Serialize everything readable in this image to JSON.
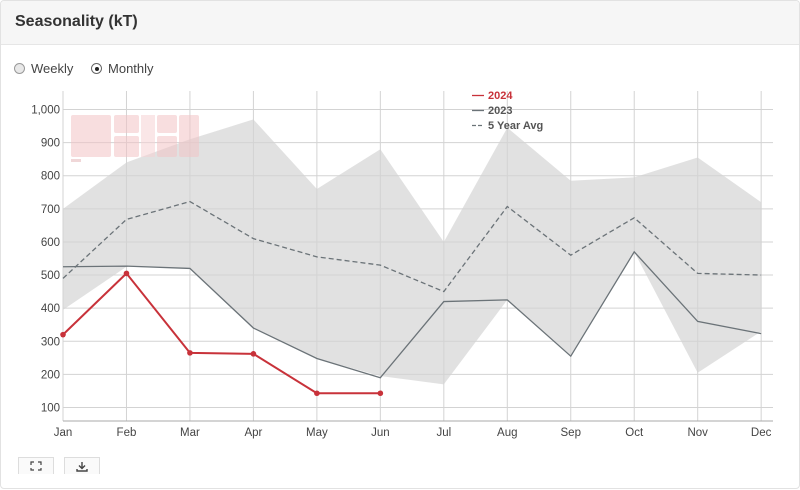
{
  "panel": {
    "title": "Seasonality (kT)"
  },
  "controls": {
    "options": [
      {
        "label": "Weekly",
        "checked": false
      },
      {
        "label": "Monthly",
        "checked": true
      }
    ]
  },
  "icons": {
    "fullscreen": "expand-icon",
    "download": "download-icon"
  },
  "chart_data": {
    "type": "line",
    "title": "",
    "xlabel": "",
    "ylabel": "",
    "categories": [
      "Jan",
      "Feb",
      "Mar",
      "Apr",
      "May",
      "Jun",
      "Jul",
      "Aug",
      "Sep",
      "Oct",
      "Nov",
      "Dec"
    ],
    "ylim": [
      50,
      1050
    ],
    "yticks": [
      100,
      200,
      300,
      400,
      500,
      600,
      700,
      800,
      900,
      1000
    ],
    "ytick_labels": [
      "100",
      "200",
      "300",
      "400",
      "500",
      "600",
      "700",
      "800",
      "900",
      "1,000"
    ],
    "grid": true,
    "legend_position": "top-center",
    "series": [
      {
        "name": "2024",
        "color": "#c8323a",
        "style": "solid",
        "markers": true,
        "values": [
          320,
          505,
          265,
          262,
          143,
          143,
          null,
          null,
          null,
          null,
          null,
          null
        ]
      },
      {
        "name": "2023",
        "color": "#6b7378",
        "style": "solid",
        "markers": false,
        "values": [
          525,
          527,
          520,
          340,
          248,
          190,
          420,
          425,
          255,
          570,
          360,
          323
        ]
      },
      {
        "name": "5 Year Avg",
        "color": "#6b7378",
        "style": "dashed",
        "markers": false,
        "values": [
          490,
          668,
          722,
          610,
          555,
          530,
          450,
          707,
          560,
          673,
          505,
          500
        ]
      }
    ],
    "range_band": {
      "color": "#dcdcdc",
      "upper": [
        700,
        840,
        910,
        970,
        760,
        880,
        600,
        945,
        785,
        795,
        855,
        720
      ],
      "lower": [
        395,
        525,
        520,
        340,
        248,
        195,
        170,
        425,
        255,
        570,
        205,
        330
      ]
    }
  }
}
